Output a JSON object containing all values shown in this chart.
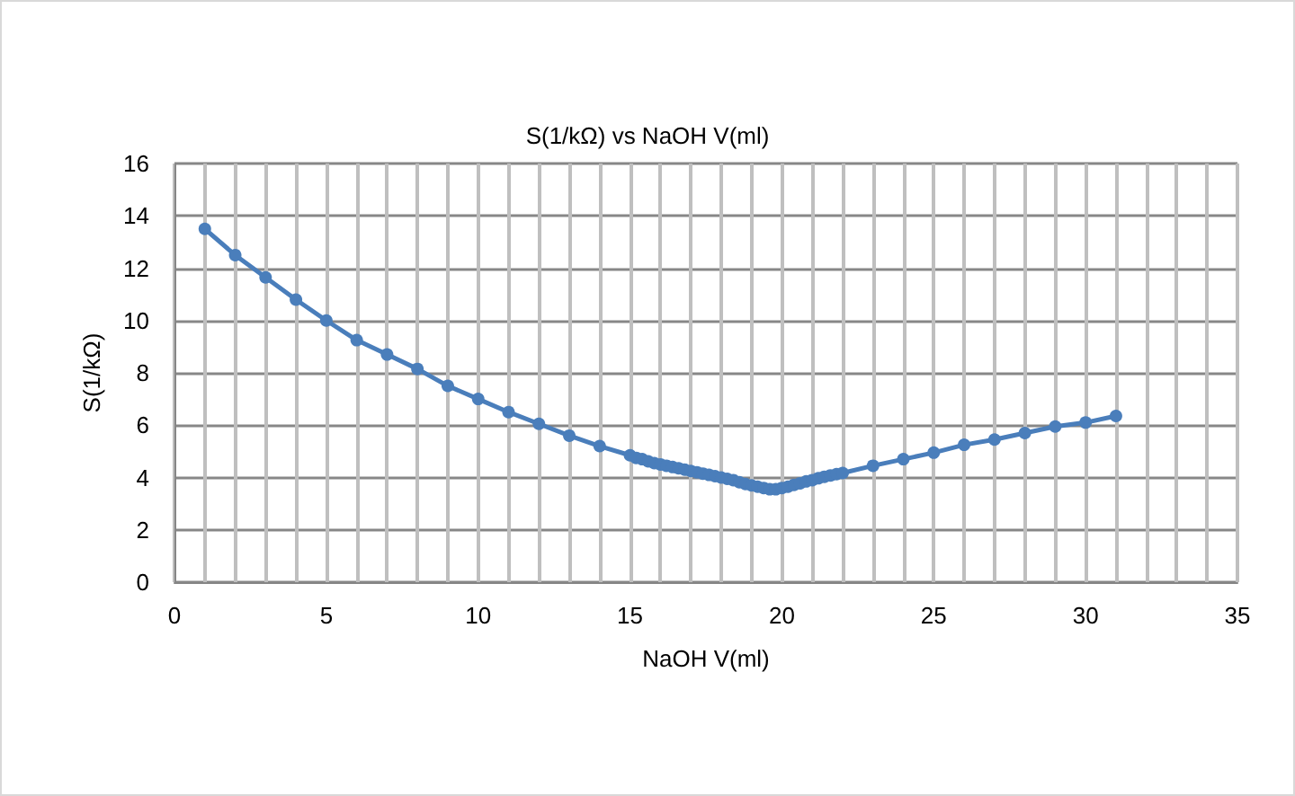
{
  "chart_data": {
    "type": "line",
    "title": "S(1/kΩ) vs NaOH V(ml)",
    "xlabel": "NaOH V(ml)",
    "ylabel": "S(1/kΩ)",
    "series": [
      {
        "color": "#4a7ebb",
        "x": [
          1,
          2,
          3,
          4,
          5,
          6,
          7,
          8,
          9,
          10,
          11,
          12,
          13,
          14,
          15,
          15.2,
          15.4,
          15.6,
          15.8,
          16,
          16.2,
          16.4,
          16.6,
          16.8,
          17,
          17.2,
          17.4,
          17.6,
          17.8,
          18,
          18.2,
          18.4,
          18.6,
          18.8,
          19,
          19.2,
          19.4,
          19.6,
          19.8,
          20,
          20.2,
          20.4,
          20.6,
          20.8,
          21,
          21.2,
          21.4,
          21.6,
          21.8,
          22,
          23,
          24,
          25,
          26,
          27,
          28,
          29,
          30,
          31
        ],
        "values": [
          13.5,
          12.5,
          11.65,
          10.8,
          10,
          9.25,
          8.7,
          8.15,
          7.5,
          7,
          6.5,
          6.05,
          5.6,
          5.2,
          4.85,
          4.75,
          4.7,
          4.62,
          4.55,
          4.5,
          4.45,
          4.4,
          4.35,
          4.3,
          4.25,
          4.2,
          4.15,
          4.1,
          4.05,
          4,
          3.95,
          3.9,
          3.82,
          3.75,
          3.7,
          3.65,
          3.6,
          3.55,
          3.55,
          3.6,
          3.65,
          3.72,
          3.78,
          3.85,
          3.9,
          3.97,
          4.03,
          4.08,
          4.13,
          4.17,
          4.45,
          4.7,
          4.95,
          5.25,
          5.45,
          5.7,
          5.95,
          6.1,
          6.35
        ]
      }
    ],
    "xlim": [
      0,
      35
    ],
    "xticks": [
      0,
      {
        "value": 1,
        "label": null
      },
      {
        "value": 2,
        "label": null
      },
      {
        "value": 3,
        "label": null
      },
      {
        "value": 4,
        "label": null
      },
      5,
      {
        "value": 6,
        "label": null
      },
      {
        "value": 7,
        "label": null
      },
      {
        "value": 8,
        "label": null
      },
      {
        "value": 9,
        "label": null
      },
      10,
      {
        "value": 11,
        "label": null
      },
      {
        "value": 12,
        "label": null
      },
      {
        "value": 13,
        "label": null
      },
      {
        "value": 14,
        "label": null
      },
      15,
      {
        "value": 16,
        "label": null
      },
      {
        "value": 17,
        "label": null
      },
      {
        "value": 18,
        "label": null
      },
      {
        "value": 19,
        "label": null
      },
      20,
      {
        "value": 21,
        "label": null
      },
      {
        "value": 22,
        "label": null
      },
      {
        "value": 23,
        "label": null
      },
      {
        "value": 24,
        "label": null
      },
      25,
      {
        "value": 26,
        "label": null
      },
      {
        "value": 27,
        "label": null
      },
      {
        "value": 28,
        "label": null
      },
      {
        "value": 29,
        "label": null
      },
      30,
      {
        "value": 31,
        "label": null
      },
      {
        "value": 32,
        "label": null
      },
      {
        "value": 33,
        "label": null
      },
      {
        "value": 34,
        "label": null
      },
      35
    ],
    "ylim": [
      0,
      16
    ],
    "yticks": [
      0,
      2,
      4,
      6,
      8,
      10,
      12,
      14,
      16
    ],
    "grid": true,
    "marker": "circle",
    "line_style": "solid"
  }
}
